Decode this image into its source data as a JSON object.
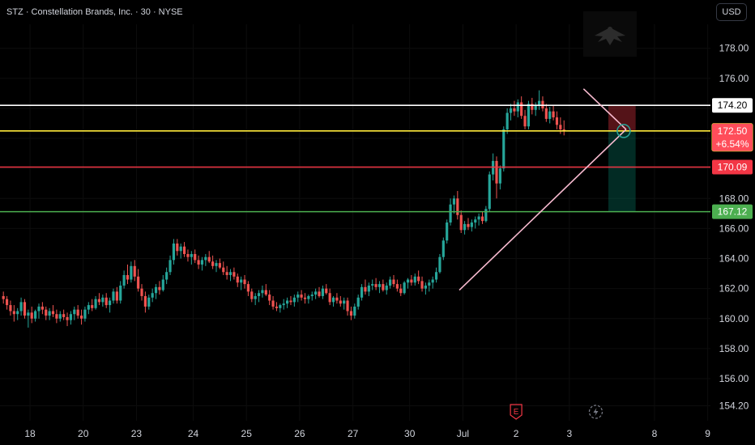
{
  "header": {
    "title": "STZ · Constellation Brands, Inc. · 30 · NYSE",
    "currency": "USD"
  },
  "colors": {
    "up": "#26a69a",
    "down": "#ef5350",
    "white_line": "#ffffff",
    "yellow_line": "#ffeb3b",
    "red_line": "#f23645",
    "green_line": "#4caf50",
    "trendline": "#f8bbd0"
  },
  "icons": {
    "earnings": "earnings-flag-icon",
    "dividend": "dividend-lightning-icon",
    "logo": "eagle-logo-icon"
  },
  "chart_data": {
    "type": "candlestick",
    "title": "STZ · Constellation Brands, Inc. · 30 · NYSE",
    "ylim": [
      153.2,
      179.6
    ],
    "y_ticks": [
      "154.20",
      "156.00",
      "158.00",
      "160.00",
      "162.00",
      "164.00",
      "166.00",
      "168.00",
      "170.00",
      "172.00",
      "174.00",
      "176.00",
      "178.00"
    ],
    "x_ticks": [
      "18",
      "20",
      "23",
      "24",
      "25",
      "26",
      "27",
      "30",
      "Jul",
      "2",
      "3",
      "8",
      "9"
    ],
    "horizontal_lines": [
      {
        "name": "",
        "value": 174.2,
        "label": "174.20",
        "color": "#ffffff"
      },
      {
        "name": "",
        "value": 172.5,
        "label": "172.50",
        "sublabel": "+6.54%",
        "color": "#ffeb3b"
      },
      {
        "name": "",
        "value": 170.09,
        "label": "170.09",
        "color": "#f23645"
      },
      {
        "name": "",
        "value": 167.12,
        "label": "167.12",
        "color": "#4caf50"
      }
    ],
    "trendlines": [
      {
        "from": {
          "bar": 129,
          "price": 161.9
        },
        "to": {
          "bar": 176,
          "price": 172.6
        }
      },
      {
        "from": {
          "bar": 164,
          "price": 175.3
        },
        "to": {
          "bar": 176,
          "price": 172.6
        }
      }
    ],
    "position": {
      "start_bar": 171,
      "end_bar": 178,
      "entry": 172.5,
      "stop": 174.2,
      "target": 167.12
    },
    "ohlc": [
      [
        161.5,
        161.8,
        161.0,
        161.3
      ],
      [
        161.3,
        161.5,
        160.6,
        160.9
      ],
      [
        160.9,
        161.2,
        160.2,
        160.5
      ],
      [
        160.5,
        160.9,
        159.8,
        160.3
      ],
      [
        160.3,
        160.7,
        159.9,
        160.5
      ],
      [
        160.5,
        161.4,
        160.2,
        161.1
      ],
      [
        161.1,
        161.3,
        160.0,
        160.2
      ],
      [
        160.2,
        160.6,
        159.4,
        160.4
      ],
      [
        160.4,
        160.8,
        159.7,
        160.0
      ],
      [
        160.0,
        160.6,
        159.8,
        160.5
      ],
      [
        160.5,
        161.0,
        160.0,
        160.8
      ],
      [
        160.8,
        161.1,
        160.3,
        160.6
      ],
      [
        160.6,
        160.8,
        159.9,
        160.2
      ],
      [
        160.2,
        160.7,
        159.9,
        160.5
      ],
      [
        160.5,
        160.9,
        160.1,
        160.3
      ],
      [
        160.3,
        160.6,
        159.7,
        160.0
      ],
      [
        160.0,
        160.5,
        159.8,
        160.3
      ],
      [
        160.3,
        160.6,
        159.9,
        160.1
      ],
      [
        160.1,
        160.4,
        159.5,
        159.9
      ],
      [
        159.9,
        160.5,
        159.6,
        160.3
      ],
      [
        160.3,
        160.8,
        159.9,
        160.6
      ],
      [
        160.6,
        160.9,
        160.0,
        160.2
      ],
      [
        160.2,
        160.6,
        159.6,
        160.0
      ],
      [
        160.0,
        160.8,
        159.8,
        160.6
      ],
      [
        160.6,
        161.1,
        160.3,
        160.9
      ],
      [
        160.9,
        161.3,
        160.5,
        160.7
      ],
      [
        160.7,
        161.5,
        160.6,
        161.3
      ],
      [
        161.3,
        161.7,
        160.9,
        161.1
      ],
      [
        161.1,
        161.6,
        160.8,
        161.4
      ],
      [
        161.4,
        161.7,
        160.7,
        160.9
      ],
      [
        160.9,
        161.4,
        160.4,
        161.2
      ],
      [
        161.2,
        162.0,
        161.0,
        161.8
      ],
      [
        161.8,
        162.1,
        161.0,
        161.2
      ],
      [
        161.2,
        162.5,
        161.0,
        162.2
      ],
      [
        162.2,
        163.2,
        162.0,
        162.9
      ],
      [
        162.9,
        163.6,
        162.3,
        162.6
      ],
      [
        162.6,
        163.8,
        162.4,
        163.5
      ],
      [
        163.5,
        163.9,
        162.5,
        162.8
      ],
      [
        162.8,
        163.3,
        161.8,
        162.0
      ],
      [
        162.0,
        162.3,
        161.2,
        161.5
      ],
      [
        161.5,
        161.8,
        160.4,
        160.8
      ],
      [
        160.8,
        161.6,
        160.6,
        161.4
      ],
      [
        161.4,
        162.0,
        161.1,
        161.7
      ],
      [
        161.7,
        162.3,
        161.3,
        162.1
      ],
      [
        162.1,
        162.5,
        161.6,
        161.9
      ],
      [
        161.9,
        162.9,
        161.8,
        162.6
      ],
      [
        162.6,
        163.4,
        162.3,
        163.1
      ],
      [
        163.1,
        164.2,
        162.9,
        163.9
      ],
      [
        163.9,
        165.3,
        163.6,
        165.0
      ],
      [
        165.0,
        165.3,
        164.2,
        164.5
      ],
      [
        164.5,
        165.0,
        164.0,
        164.8
      ],
      [
        164.8,
        165.1,
        164.1,
        164.3
      ],
      [
        164.3,
        164.6,
        163.8,
        164.1
      ],
      [
        164.1,
        164.5,
        163.6,
        164.3
      ],
      [
        164.3,
        164.6,
        163.7,
        163.9
      ],
      [
        163.9,
        164.2,
        163.3,
        163.6
      ],
      [
        163.6,
        164.1,
        163.2,
        163.9
      ],
      [
        163.9,
        164.3,
        163.5,
        164.1
      ],
      [
        164.1,
        164.5,
        163.7,
        163.8
      ],
      [
        163.8,
        164.2,
        163.3,
        163.5
      ],
      [
        163.5,
        163.9,
        163.1,
        163.7
      ],
      [
        163.7,
        164.0,
        163.3,
        163.4
      ],
      [
        163.4,
        163.8,
        162.9,
        163.1
      ],
      [
        163.1,
        163.5,
        162.6,
        162.9
      ],
      [
        162.9,
        163.3,
        162.5,
        163.1
      ],
      [
        163.1,
        163.4,
        162.6,
        162.8
      ],
      [
        162.8,
        163.0,
        162.1,
        162.4
      ],
      [
        162.4,
        162.8,
        161.9,
        162.6
      ],
      [
        162.6,
        162.9,
        162.0,
        162.3
      ],
      [
        162.3,
        162.5,
        161.5,
        161.8
      ],
      [
        161.8,
        162.0,
        161.1,
        161.3
      ],
      [
        161.3,
        161.7,
        160.9,
        161.5
      ],
      [
        161.5,
        161.9,
        161.1,
        161.7
      ],
      [
        161.7,
        162.2,
        161.4,
        161.9
      ],
      [
        161.9,
        162.3,
        161.5,
        161.6
      ],
      [
        161.6,
        161.9,
        160.9,
        161.2
      ],
      [
        161.2,
        161.5,
        160.6,
        160.8
      ],
      [
        160.8,
        161.1,
        160.5,
        160.7
      ],
      [
        160.7,
        161.0,
        160.4,
        160.9
      ],
      [
        160.9,
        161.3,
        160.6,
        161.0
      ],
      [
        161.0,
        161.4,
        160.7,
        161.2
      ],
      [
        161.2,
        161.5,
        160.9,
        161.1
      ],
      [
        161.1,
        161.6,
        160.8,
        161.4
      ],
      [
        161.4,
        161.8,
        161.1,
        161.6
      ],
      [
        161.6,
        161.9,
        161.2,
        161.4
      ],
      [
        161.4,
        161.7,
        161.0,
        161.3
      ],
      [
        161.3,
        161.6,
        161.0,
        161.5
      ],
      [
        161.5,
        161.8,
        161.2,
        161.6
      ],
      [
        161.6,
        162.0,
        161.3,
        161.8
      ],
      [
        161.8,
        162.1,
        161.4,
        161.5
      ],
      [
        161.5,
        162.2,
        161.3,
        162.0
      ],
      [
        162.0,
        162.3,
        161.6,
        161.7
      ],
      [
        161.7,
        162.0,
        160.9,
        161.1
      ],
      [
        161.1,
        161.5,
        160.8,
        161.4
      ],
      [
        161.4,
        161.7,
        161.0,
        161.2
      ],
      [
        161.2,
        161.5,
        160.8,
        161.0
      ],
      [
        161.0,
        161.4,
        160.6,
        161.2
      ],
      [
        161.2,
        161.4,
        160.2,
        160.5
      ],
      [
        160.5,
        160.8,
        159.9,
        160.2
      ],
      [
        160.2,
        161.0,
        160.0,
        160.8
      ],
      [
        160.8,
        161.6,
        160.6,
        161.4
      ],
      [
        161.4,
        162.3,
        161.2,
        162.1
      ],
      [
        162.1,
        162.6,
        161.6,
        161.8
      ],
      [
        161.8,
        162.4,
        161.5,
        162.2
      ],
      [
        162.2,
        162.6,
        161.9,
        162.3
      ],
      [
        162.3,
        162.7,
        161.9,
        162.1
      ],
      [
        162.1,
        162.5,
        161.7,
        162.3
      ],
      [
        162.3,
        162.6,
        161.8,
        161.9
      ],
      [
        161.9,
        162.4,
        161.6,
        162.2
      ],
      [
        162.2,
        162.8,
        162.0,
        162.6
      ],
      [
        162.6,
        162.9,
        162.1,
        162.3
      ],
      [
        162.3,
        162.6,
        161.8,
        162.0
      ],
      [
        162.0,
        162.3,
        161.5,
        161.7
      ],
      [
        161.7,
        162.5,
        161.6,
        162.4
      ],
      [
        162.4,
        162.7,
        162.0,
        162.6
      ],
      [
        162.6,
        162.9,
        162.2,
        162.4
      ],
      [
        162.4,
        163.0,
        162.2,
        162.8
      ],
      [
        162.8,
        163.2,
        162.3,
        162.5
      ],
      [
        162.5,
        162.8,
        161.8,
        162.0
      ],
      [
        162.0,
        162.4,
        161.6,
        162.2
      ],
      [
        162.2,
        162.6,
        161.8,
        162.4
      ],
      [
        162.4,
        162.8,
        162.0,
        162.6
      ],
      [
        162.6,
        163.4,
        162.4,
        163.1
      ],
      [
        163.1,
        164.3,
        163.0,
        164.1
      ],
      [
        164.1,
        165.4,
        163.9,
        165.2
      ],
      [
        165.2,
        166.6,
        165.0,
        166.4
      ],
      [
        166.4,
        168.0,
        166.2,
        167.6
      ],
      [
        167.6,
        168.2,
        167.0,
        168.0
      ],
      [
        168.0,
        168.5,
        166.6,
        166.9
      ],
      [
        166.9,
        167.2,
        165.7,
        165.9
      ],
      [
        165.9,
        166.5,
        165.6,
        166.3
      ],
      [
        166.3,
        166.7,
        165.9,
        166.1
      ],
      [
        166.1,
        166.6,
        165.8,
        166.4
      ],
      [
        166.4,
        166.8,
        166.0,
        166.6
      ],
      [
        166.6,
        167.0,
        166.2,
        166.8
      ],
      [
        166.8,
        167.1,
        166.3,
        166.5
      ],
      [
        166.5,
        167.5,
        166.4,
        167.3
      ],
      [
        167.3,
        169.8,
        167.1,
        169.6
      ],
      [
        169.6,
        171.0,
        169.2,
        170.5
      ],
      [
        170.5,
        170.8,
        168.0,
        169.0
      ],
      [
        169.0,
        170.2,
        168.6,
        170.0
      ],
      [
        170.0,
        172.8,
        169.8,
        172.6
      ],
      [
        172.6,
        174.0,
        172.3,
        173.7
      ],
      [
        173.7,
        174.3,
        173.2,
        174.0
      ],
      [
        174.0,
        174.5,
        173.5,
        173.8
      ],
      [
        173.8,
        174.6,
        173.4,
        174.4
      ],
      [
        174.4,
        174.8,
        173.3,
        173.5
      ],
      [
        173.5,
        173.9,
        172.6,
        172.8
      ],
      [
        172.8,
        174.5,
        172.6,
        174.3
      ],
      [
        174.3,
        174.7,
        173.6,
        173.9
      ],
      [
        173.9,
        174.4,
        173.5,
        174.2
      ],
      [
        174.2,
        175.2,
        173.9,
        174.5
      ],
      [
        174.5,
        174.8,
        173.8,
        174.0
      ],
      [
        174.0,
        174.3,
        173.1,
        173.3
      ],
      [
        173.3,
        174.1,
        173.0,
        173.8
      ],
      [
        173.8,
        174.2,
        173.2,
        173.4
      ],
      [
        173.4,
        173.8,
        172.6,
        172.9
      ],
      [
        172.9,
        173.4,
        172.3,
        172.6
      ],
      [
        172.6,
        173.2,
        172.2,
        172.5
      ]
    ]
  }
}
